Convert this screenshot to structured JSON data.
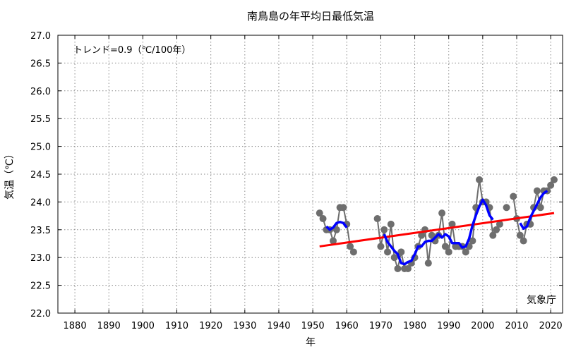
{
  "chart_data": {
    "type": "line",
    "title": "南鳥島の年平均日最低気温",
    "xlabel": "年",
    "ylabel": "気温（℃）",
    "xlim": [
      1875,
      2023.5
    ],
    "ylim": [
      22.0,
      27.0
    ],
    "xticks": [
      1880,
      1890,
      1900,
      1910,
      1920,
      1930,
      1940,
      1950,
      1960,
      1970,
      1980,
      1990,
      2000,
      2010,
      2020
    ],
    "yticks": [
      "22.0",
      "22.5",
      "23.0",
      "23.5",
      "24.0",
      "24.5",
      "25.0",
      "25.5",
      "26.0",
      "26.5",
      "27.0"
    ],
    "grid": true,
    "annotation_trend": "トレンド=0.9（℃/100年）",
    "credit": "気象庁",
    "colors": {
      "annual": "#6e6e6e",
      "moving_average": "#0000ff",
      "trend": "#ff0000"
    },
    "series": [
      {
        "key": "annual",
        "x": [
          1952,
          1953,
          1954,
          1955,
          1956,
          1957,
          1958,
          1959,
          1960,
          1961,
          1962,
          1969,
          1970,
          1971,
          1972,
          1973,
          1974,
          1975,
          1976,
          1977,
          1978,
          1979,
          1980,
          1981,
          1982,
          1983,
          1984,
          1985,
          1986,
          1987,
          1988,
          1989,
          1990,
          1991,
          1992,
          1993,
          1994,
          1995,
          1996,
          1997,
          1998,
          1999,
          2000,
          2001,
          2002,
          2003,
          2004,
          2005,
          2007,
          2009,
          2010,
          2011,
          2012,
          2013,
          2014,
          2015,
          2016,
          2017,
          2018,
          2019,
          2020,
          2021
        ],
        "y": [
          23.8,
          23.7,
          23.5,
          23.5,
          23.3,
          23.5,
          23.9,
          23.9,
          23.6,
          23.2,
          23.1,
          23.7,
          23.2,
          23.5,
          23.1,
          23.6,
          23.0,
          22.8,
          23.1,
          22.8,
          22.8,
          22.9,
          23.0,
          23.2,
          23.4,
          23.5,
          22.9,
          23.4,
          23.3,
          23.4,
          23.8,
          23.2,
          23.1,
          23.6,
          23.2,
          23.2,
          23.2,
          23.1,
          23.2,
          23.3,
          23.9,
          24.4,
          24.0,
          24.0,
          23.9,
          23.4,
          23.5,
          23.6,
          23.9,
          24.1,
          23.7,
          23.4,
          23.3,
          23.6,
          23.6,
          23.9,
          24.2,
          23.9,
          24.2,
          24.2,
          24.3,
          24.4
        ]
      },
      {
        "key": "moving_average",
        "x": [
          1954,
          1955,
          1956,
          1957,
          1958,
          1959,
          1960,
          1971,
          1972,
          1973,
          1974,
          1975,
          1976,
          1977,
          1978,
          1979,
          1980,
          1981,
          1982,
          1983,
          1984,
          1985,
          1986,
          1987,
          1988,
          1989,
          1990,
          1991,
          1992,
          1993,
          1994,
          1995,
          1996,
          1997,
          1998,
          1999,
          2000,
          2001,
          2002,
          2003,
          2011,
          2012,
          2013,
          2014,
          2015,
          2016,
          2017,
          2018,
          2019
        ],
        "y": [
          23.56,
          23.5,
          23.54,
          23.62,
          23.64,
          23.62,
          23.54,
          23.42,
          23.28,
          23.2,
          23.12,
          23.06,
          22.9,
          22.88,
          22.92,
          22.94,
          23.06,
          23.2,
          23.2,
          23.28,
          23.3,
          23.3,
          23.36,
          23.42,
          23.36,
          23.42,
          23.38,
          23.26,
          23.26,
          23.26,
          23.18,
          23.2,
          23.34,
          23.58,
          23.76,
          23.92,
          24.04,
          23.94,
          23.76,
          23.68,
          23.62,
          23.52,
          23.56,
          23.72,
          23.84,
          23.96,
          24.08,
          24.16,
          24.2
        ]
      },
      {
        "key": "trend",
        "x": [
          1952,
          2021
        ],
        "y": [
          23.2,
          23.8
        ]
      }
    ]
  }
}
